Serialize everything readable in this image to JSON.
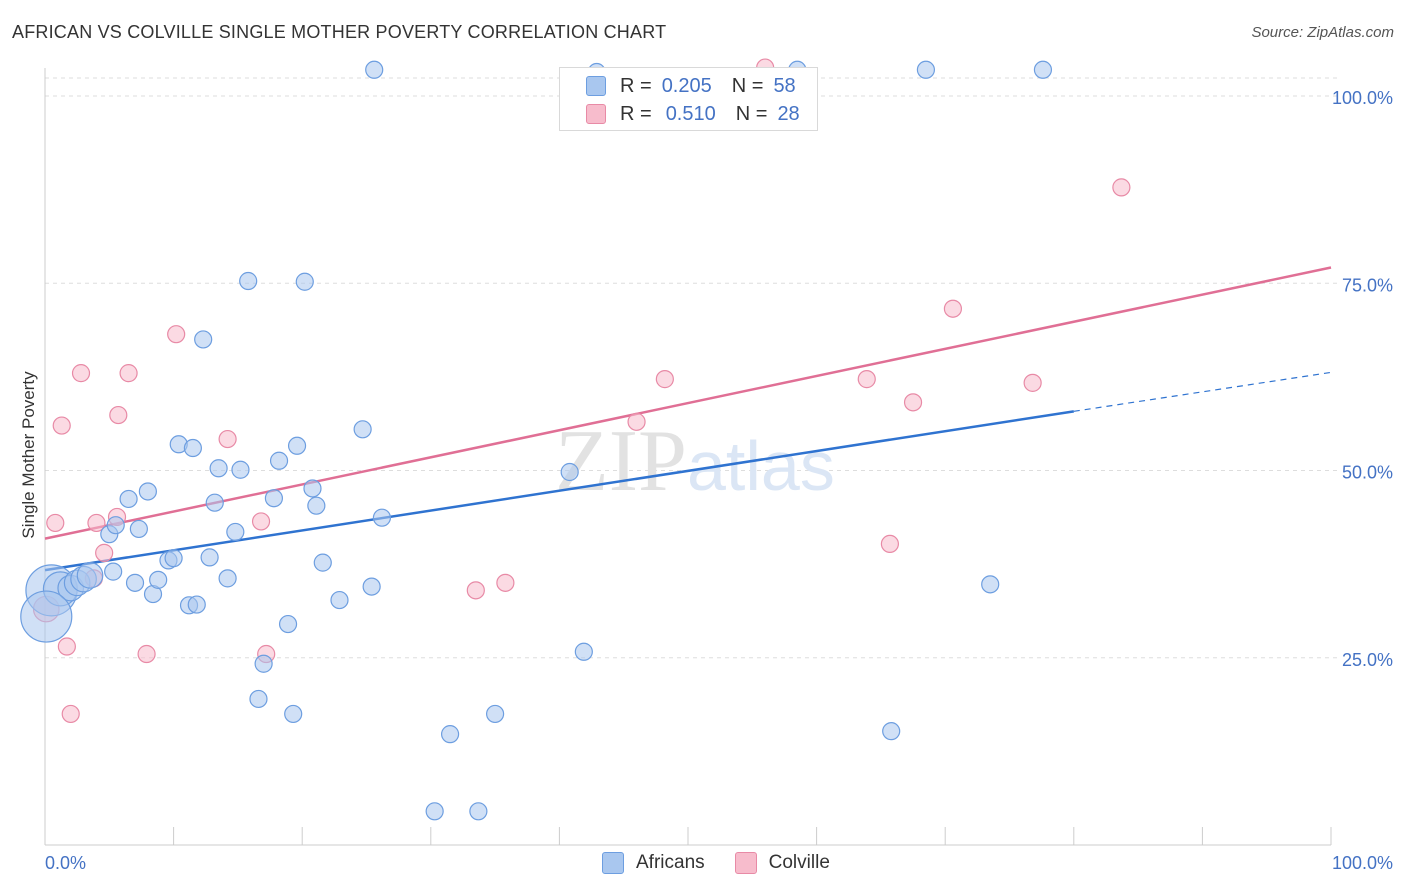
{
  "title": "AFRICAN VS COLVILLE SINGLE MOTHER POVERTY CORRELATION CHART",
  "source": "Source: ZipAtlas.com",
  "watermark": "ZIPatlas",
  "legend": {
    "africans": {
      "r_label": "R =",
      "r_value": "0.205",
      "n_label": "N =",
      "n_value": "58"
    },
    "colville": {
      "r_label": "R =",
      "r_value": "0.510",
      "n_label": "N =",
      "n_value": "28"
    }
  },
  "bottom_legend": {
    "africans": "Africans",
    "colville": "Colville"
  },
  "colors": {
    "africans_fill": "#a9c7ef",
    "africans_stroke": "#6d9ee0",
    "africans_line": "#2f73d0",
    "colville_fill": "#f7bccc",
    "colville_stroke": "#e88aa6",
    "colville_line": "#e06f95",
    "tick": "#4472c4"
  },
  "chart_data": {
    "type": "scatter",
    "title": "AFRICAN VS COLVILLE SINGLE MOTHER POVERTY CORRELATION CHART",
    "xlabel": "",
    "ylabel": "Single Mother Poverty",
    "xlim": [
      0,
      100
    ],
    "ylim": [
      0,
      105
    ],
    "x_tick_labels": [
      "0.0%",
      "100.0%"
    ],
    "y_tick_labels": [
      "25.0%",
      "50.0%",
      "75.0%",
      "100.0%"
    ],
    "y_ticks": [
      25,
      50,
      75,
      100
    ],
    "grid": true,
    "legend_position": "top-center",
    "series": [
      {
        "name": "Africans",
        "points": [
          [
            0.5,
            34,
            3
          ],
          [
            1.2,
            34.2,
            2
          ],
          [
            2,
            34.3,
            1.5
          ],
          [
            2.5,
            35,
            1.5
          ],
          [
            3,
            35.5,
            1.5
          ],
          [
            3.5,
            36,
            1.5
          ],
          [
            0.1,
            30.5,
            3
          ],
          [
            5.3,
            36.5,
            1
          ],
          [
            5,
            41.5,
            1
          ],
          [
            5.5,
            42.7,
            1
          ],
          [
            6.5,
            46.2,
            1
          ],
          [
            7.3,
            42.2,
            1
          ],
          [
            7,
            35,
            1
          ],
          [
            8,
            47.2,
            1
          ],
          [
            8.4,
            33.5,
            1
          ],
          [
            8.8,
            35.4,
            1
          ],
          [
            9.6,
            38,
            1
          ],
          [
            10,
            38.3,
            1
          ],
          [
            10.4,
            53.5,
            1
          ],
          [
            11.2,
            32,
            1
          ],
          [
            11.5,
            53,
            1
          ],
          [
            11.8,
            32.1,
            1
          ],
          [
            12.3,
            67.5,
            1
          ],
          [
            12.8,
            38.4,
            1
          ],
          [
            13.2,
            45.7,
            1
          ],
          [
            13.5,
            50.3,
            1
          ],
          [
            14.2,
            35.6,
            1
          ],
          [
            14.8,
            41.8,
            1
          ],
          [
            15.2,
            50.1,
            1
          ],
          [
            15.8,
            75.3,
            1
          ],
          [
            16.6,
            19.5,
            1
          ],
          [
            17,
            24.2,
            1
          ],
          [
            17.8,
            46.3,
            1
          ],
          [
            18.2,
            51.3,
            1
          ],
          [
            18.9,
            29.5,
            1
          ],
          [
            19.3,
            17.5,
            1
          ],
          [
            19.6,
            53.3,
            1
          ],
          [
            20.2,
            75.2,
            1
          ],
          [
            20.8,
            47.6,
            1
          ],
          [
            21.1,
            45.3,
            1
          ],
          [
            21.6,
            37.7,
            1
          ],
          [
            22.9,
            32.7,
            1
          ],
          [
            24.7,
            55.5,
            1
          ],
          [
            25.4,
            34.5,
            1
          ],
          [
            25.6,
            103.5,
            1
          ],
          [
            26.2,
            43.7,
            1
          ],
          [
            30.3,
            4.5,
            1
          ],
          [
            31.5,
            14.8,
            1
          ],
          [
            33.7,
            4.5,
            1
          ],
          [
            35,
            17.5,
            1
          ],
          [
            40.8,
            49.8,
            1
          ],
          [
            41.9,
            25.8,
            1
          ],
          [
            42.9,
            103.2,
            1
          ],
          [
            68.5,
            103.5,
            1
          ],
          [
            58.5,
            103.5,
            1
          ],
          [
            65.8,
            15.2,
            1
          ],
          [
            73.5,
            34.8,
            1
          ],
          [
            77.6,
            103.5,
            1
          ]
        ],
        "trend": {
          "x": [
            0,
            80
          ],
          "y": [
            36.7,
            57.9
          ],
          "dashed_to": [
            100,
            63.1
          ]
        }
      },
      {
        "name": "Colville",
        "points": [
          [
            0.1,
            31.5,
            1.5
          ],
          [
            0.8,
            43,
            1
          ],
          [
            1.3,
            56,
            1
          ],
          [
            1.7,
            26.5,
            1
          ],
          [
            2,
            17.5,
            1
          ],
          [
            2.8,
            63,
            1
          ],
          [
            3.8,
            35.6,
            1
          ],
          [
            4,
            43,
            1
          ],
          [
            4.6,
            39,
            1
          ],
          [
            5.6,
            43.8,
            1
          ],
          [
            5.7,
            57.4,
            1
          ],
          [
            6.5,
            63,
            1
          ],
          [
            7.9,
            25.5,
            1
          ],
          [
            10.2,
            68.2,
            1
          ],
          [
            14.2,
            54.2,
            1
          ],
          [
            16.8,
            43.2,
            1
          ],
          [
            17.2,
            25.5,
            1
          ],
          [
            33.5,
            34,
            1
          ],
          [
            35.8,
            35,
            1
          ],
          [
            46,
            56.5,
            1
          ],
          [
            48.2,
            62.2,
            1
          ],
          [
            56,
            103.8,
            1
          ],
          [
            63.9,
            62.2,
            1
          ],
          [
            65.7,
            40.2,
            1
          ],
          [
            67.5,
            59.1,
            1
          ],
          [
            70.6,
            71.6,
            1
          ],
          [
            76.8,
            61.7,
            1
          ],
          [
            83.7,
            87.8,
            1
          ]
        ],
        "trend": {
          "x": [
            0,
            100
          ],
          "y": [
            40.9,
            77.1
          ]
        }
      }
    ]
  }
}
